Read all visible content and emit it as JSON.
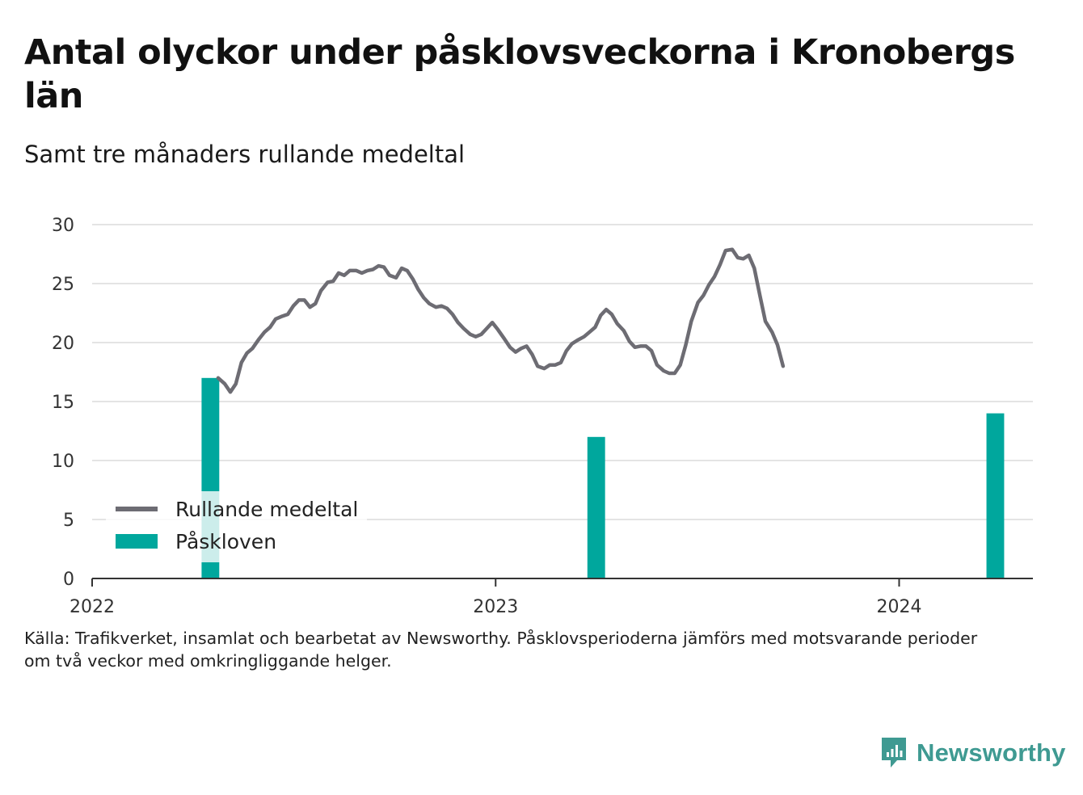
{
  "title": "Antal olyckor under påsklovsveckorna i Kronobergs län",
  "subtitle": "Samt tre månaders rullande medeltal",
  "source": "Källa: Trafikverket, insamlat och bearbetat av Newsworthy. Påsklovsperioderna jämförs med motsvarande perioder\nom två veckor med omkringliggande helger.",
  "brand": {
    "name": "Newsworthy",
    "icon": "bar-chart-logo-icon",
    "color": "#3f9a92"
  },
  "chart_data": {
    "type": "bar",
    "ylim": [
      0,
      30
    ],
    "xlim": [
      "2022-01-01",
      "2024-05-01"
    ],
    "y_ticks": [
      0,
      5,
      10,
      15,
      20,
      25,
      30
    ],
    "x_ticks": [
      {
        "date": "2022-01-01",
        "label": "2022"
      },
      {
        "date": "2023-01-01",
        "label": "2023"
      },
      {
        "date": "2024-01-01",
        "label": "2024"
      }
    ],
    "grid": true,
    "legend": {
      "position": "bottom-left",
      "items": [
        {
          "label": "Rullande medeltal",
          "type": "line",
          "color": "#6d6c73"
        },
        {
          "label": "Påskloven",
          "type": "bar",
          "color": "#00a79d"
        }
      ]
    },
    "series": [
      {
        "name": "Påskloven",
        "type": "bar",
        "color": "#00a79d",
        "points": [
          {
            "start": "2022-04-10",
            "end": "2022-04-26",
            "value": 17
          },
          {
            "start": "2023-03-25",
            "end": "2023-04-10",
            "value": 12
          },
          {
            "start": "2024-03-20",
            "end": "2024-04-05",
            "value": 14
          }
        ]
      },
      {
        "name": "Rullande medeltal",
        "type": "line",
        "color": "#6d6c73",
        "points": [
          [
            "2022-04-25",
            17.0
          ],
          [
            "2022-05-01",
            16.5
          ],
          [
            "2022-05-06",
            15.8
          ],
          [
            "2022-05-11",
            16.5
          ],
          [
            "2022-05-16",
            18.3
          ],
          [
            "2022-05-21",
            19.1
          ],
          [
            "2022-05-26",
            19.5
          ],
          [
            "2022-06-01",
            20.3
          ],
          [
            "2022-06-06",
            20.9
          ],
          [
            "2022-06-11",
            21.3
          ],
          [
            "2022-06-16",
            22.0
          ],
          [
            "2022-06-21",
            22.2
          ],
          [
            "2022-06-27",
            22.4
          ],
          [
            "2022-07-02",
            23.1
          ],
          [
            "2022-07-07",
            23.6
          ],
          [
            "2022-07-12",
            23.6
          ],
          [
            "2022-07-17",
            23.0
          ],
          [
            "2022-07-22",
            23.3
          ],
          [
            "2022-07-27",
            24.4
          ],
          [
            "2022-08-02",
            25.1
          ],
          [
            "2022-08-07",
            25.2
          ],
          [
            "2022-08-12",
            25.9
          ],
          [
            "2022-08-17",
            25.7
          ],
          [
            "2022-08-22",
            26.1
          ],
          [
            "2022-08-28",
            26.1
          ],
          [
            "2022-09-02",
            25.9
          ],
          [
            "2022-09-07",
            26.1
          ],
          [
            "2022-09-12",
            26.2
          ],
          [
            "2022-09-17",
            26.5
          ],
          [
            "2022-09-22",
            26.4
          ],
          [
            "2022-09-27",
            25.7
          ],
          [
            "2022-10-03",
            25.5
          ],
          [
            "2022-10-08",
            26.3
          ],
          [
            "2022-10-13",
            26.1
          ],
          [
            "2022-10-18",
            25.4
          ],
          [
            "2022-10-23",
            24.5
          ],
          [
            "2022-10-28",
            23.8
          ],
          [
            "2022-11-02",
            23.3
          ],
          [
            "2022-11-08",
            23.0
          ],
          [
            "2022-11-13",
            23.1
          ],
          [
            "2022-11-18",
            22.9
          ],
          [
            "2022-11-23",
            22.4
          ],
          [
            "2022-11-28",
            21.7
          ],
          [
            "2022-12-03",
            21.2
          ],
          [
            "2022-12-09",
            20.7
          ],
          [
            "2022-12-14",
            20.5
          ],
          [
            "2022-12-19",
            20.7
          ],
          [
            "2022-12-24",
            21.2
          ],
          [
            "2022-12-29",
            21.7
          ],
          [
            "2023-01-03",
            21.1
          ],
          [
            "2023-01-09",
            20.3
          ],
          [
            "2023-01-14",
            19.6
          ],
          [
            "2023-01-19",
            19.2
          ],
          [
            "2023-01-24",
            19.5
          ],
          [
            "2023-01-29",
            19.7
          ],
          [
            "2023-02-03",
            19.0
          ],
          [
            "2023-02-08",
            18.0
          ],
          [
            "2023-02-14",
            17.8
          ],
          [
            "2023-02-19",
            18.1
          ],
          [
            "2023-02-24",
            18.1
          ],
          [
            "2023-03-01",
            18.3
          ],
          [
            "2023-03-06",
            19.3
          ],
          [
            "2023-03-11",
            19.9
          ],
          [
            "2023-03-16",
            20.2
          ],
          [
            "2023-03-22",
            20.5
          ],
          [
            "2023-03-27",
            20.9
          ],
          [
            "2023-04-01",
            21.3
          ],
          [
            "2023-04-06",
            22.3
          ],
          [
            "2023-04-11",
            22.8
          ],
          [
            "2023-04-16",
            22.4
          ],
          [
            "2023-04-21",
            21.6
          ],
          [
            "2023-04-27",
            21.0
          ],
          [
            "2023-05-02",
            20.1
          ],
          [
            "2023-05-07",
            19.6
          ],
          [
            "2023-05-12",
            19.7
          ],
          [
            "2023-05-17",
            19.7
          ],
          [
            "2023-05-22",
            19.3
          ],
          [
            "2023-05-27",
            18.1
          ],
          [
            "2023-06-02",
            17.6
          ],
          [
            "2023-06-07",
            17.4
          ],
          [
            "2023-06-12",
            17.4
          ],
          [
            "2023-06-17",
            18.1
          ],
          [
            "2023-06-22",
            19.8
          ],
          [
            "2023-06-27",
            21.8
          ],
          [
            "2023-07-03",
            23.4
          ],
          [
            "2023-07-08",
            24.0
          ],
          [
            "2023-07-13",
            24.9
          ],
          [
            "2023-07-18",
            25.6
          ],
          [
            "2023-07-23",
            26.6
          ],
          [
            "2023-07-28",
            27.8
          ],
          [
            "2023-08-03",
            27.9
          ],
          [
            "2023-08-08",
            27.2
          ],
          [
            "2023-08-13",
            27.1
          ],
          [
            "2023-08-18",
            27.4
          ],
          [
            "2023-08-23",
            26.3
          ],
          [
            "2023-08-28",
            24.0
          ],
          [
            "2023-09-02",
            21.8
          ],
          [
            "2023-09-08",
            20.9
          ],
          [
            "2023-09-13",
            19.8
          ],
          [
            "2023-09-18",
            18.0
          ]
        ]
      }
    ]
  }
}
